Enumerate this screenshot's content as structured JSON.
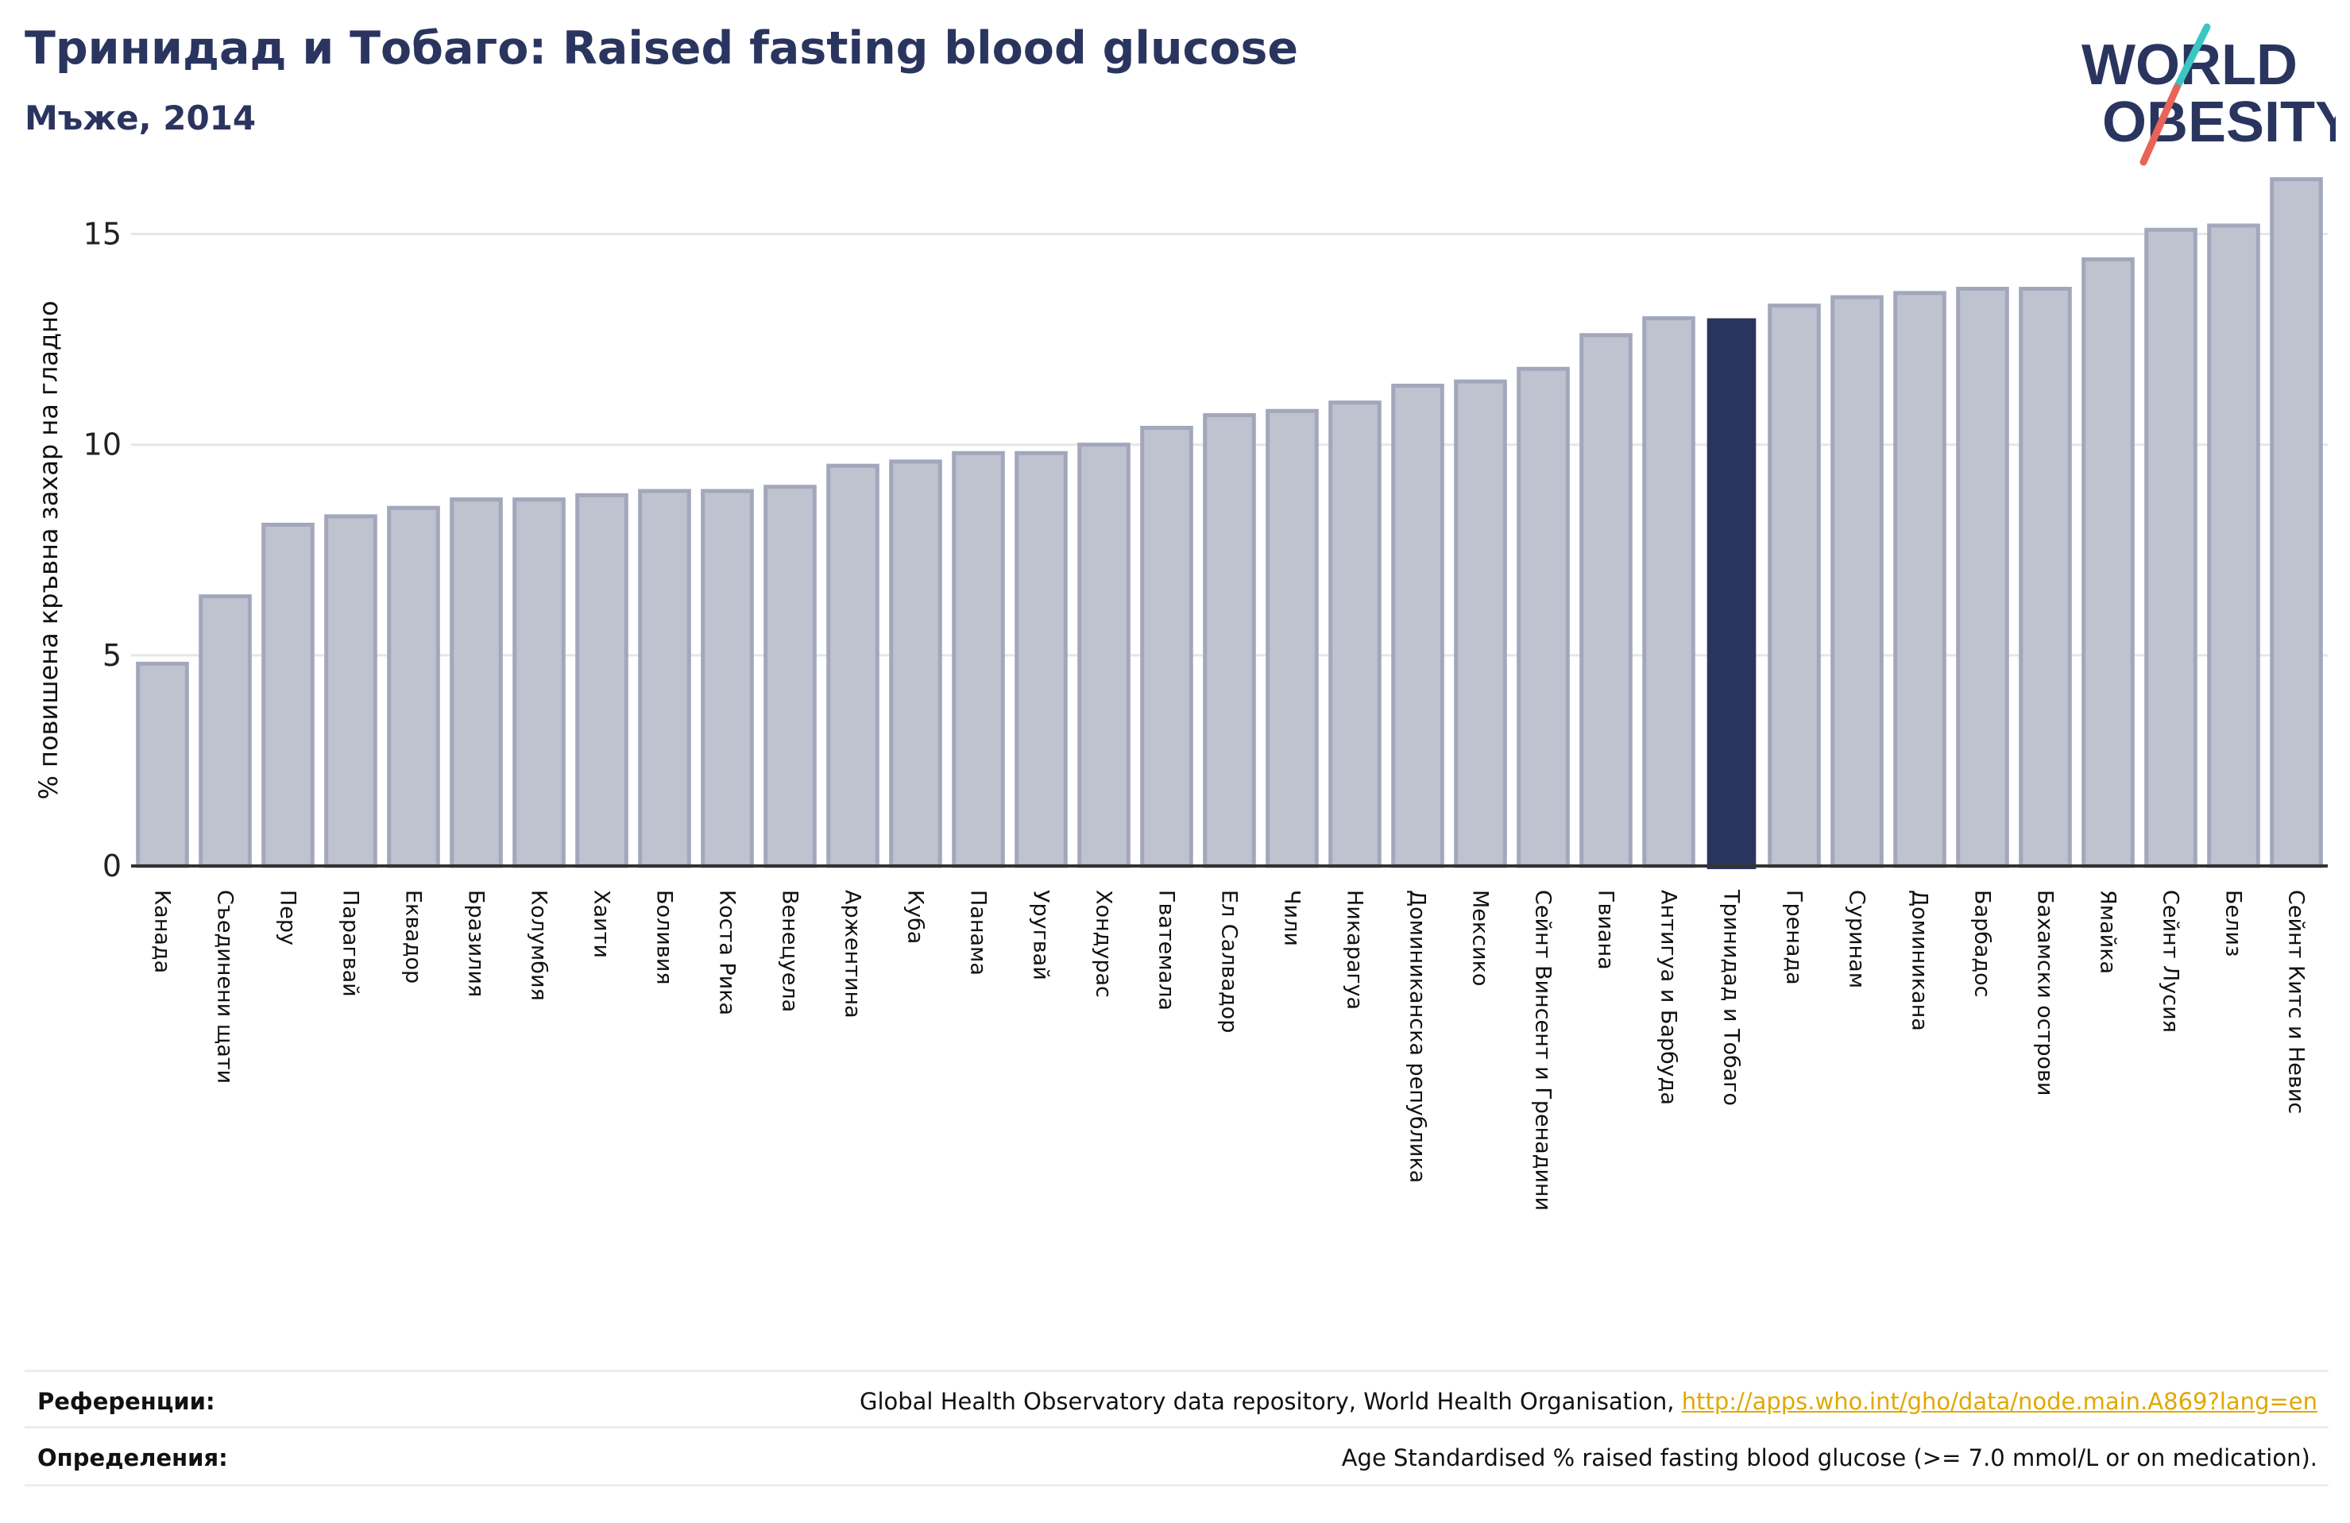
{
  "header": {
    "title": "Тринидад и Тобаго: Raised fasting blood glucose",
    "subtitle": "Мъже, 2014"
  },
  "logo": {
    "line1": "WORLD",
    "line2": "OBESITY",
    "slash_colors": [
      "#3cc6c2",
      "#e8635a"
    ]
  },
  "colors": {
    "highlight": "#2a355f",
    "bar": "#bfc2cf",
    "bar_edge": "#a3a7bc",
    "grid": "#e6e6e6",
    "axis": "#333333"
  },
  "chart_data": {
    "type": "bar",
    "ylabel": "% повишена кръвна захар на гладно",
    "ylim": [
      0,
      16.5
    ],
    "yticks": [
      0,
      5,
      10,
      15
    ],
    "grid": true,
    "highlight": "Тринидад и Тобаго",
    "categories": [
      "Канада",
      "Съединени щати",
      "Перу",
      "Парагвай",
      "Еквадор",
      "Бразилия",
      "Колумбия",
      "Хаити",
      "Боливия",
      "Коста Рика",
      "Венецуела",
      "Аржентина",
      "Куба",
      "Панама",
      "Уругвай",
      "Хондурас",
      "Гватемала",
      "Ел Салвадор",
      "Чили",
      "Никарагуа",
      "Доминиканска република",
      "Мексико",
      "Сейнт Винсент и Гренадини",
      "Гвиана",
      "Антигуа и Барбуда",
      "Тринидад и Тобаго",
      "Гренада",
      "Суринам",
      "Доминикана",
      "Барбадос",
      "Бахамски острови",
      "Ямайка",
      "Сейнт Лусия",
      "Белиз",
      "Сейнт Китс и Невис"
    ],
    "values": [
      4.8,
      6.4,
      8.1,
      8.3,
      8.5,
      8.7,
      8.7,
      8.8,
      8.9,
      8.9,
      9.0,
      9.5,
      9.6,
      9.8,
      9.8,
      10.0,
      10.4,
      10.7,
      10.8,
      11.0,
      11.4,
      11.5,
      11.8,
      12.6,
      13.0,
      13.0,
      13.3,
      13.5,
      13.6,
      13.7,
      13.7,
      14.4,
      15.1,
      15.2,
      16.3
    ]
  },
  "footer": {
    "references_label": "Референции:",
    "references_text": "Global Health Observatory data repository, World Health Organisation,",
    "references_link": "http://apps.who.int/gho/data/node.main.A869?lang=en",
    "definitions_label": "Определения:",
    "definitions_text": "Age Standardised % raised fasting blood glucose (>= 7.0 mmol/L or on medication)."
  }
}
